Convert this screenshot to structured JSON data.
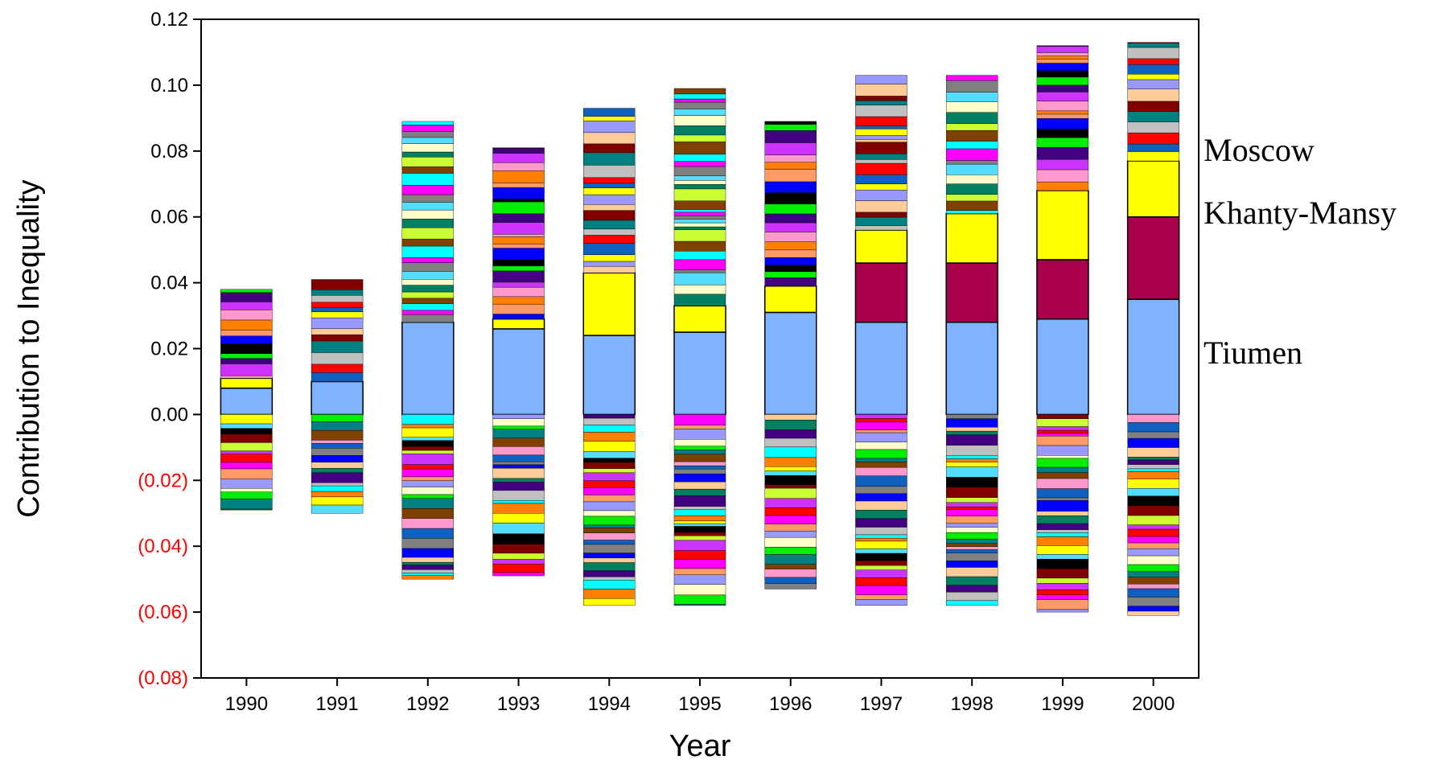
{
  "chart_data": {
    "type": "bar",
    "stacked": true,
    "title": "",
    "xlabel": "Year",
    "ylabel": "Contribution to Inequality",
    "ylim": [
      -0.08,
      0.12
    ],
    "yticks": [
      {
        "value": 0.12,
        "label": "0.12",
        "color": "#000000"
      },
      {
        "value": 0.1,
        "label": "0.10",
        "color": "#000000"
      },
      {
        "value": 0.08,
        "label": "0.08",
        "color": "#000000"
      },
      {
        "value": 0.06,
        "label": "0.06",
        "color": "#000000"
      },
      {
        "value": 0.04,
        "label": "0.04",
        "color": "#000000"
      },
      {
        "value": 0.02,
        "label": "0.02",
        "color": "#000000"
      },
      {
        "value": 0.0,
        "label": "0.00",
        "color": "#000000"
      },
      {
        "value": -0.02,
        "label": "(0.02)",
        "color": "#ff0000"
      },
      {
        "value": -0.04,
        "label": "(0.04)",
        "color": "#ff0000"
      },
      {
        "value": -0.06,
        "label": "(0.06)",
        "color": "#ff0000"
      },
      {
        "value": -0.08,
        "label": "(0.08)",
        "color": "#ff0000"
      }
    ],
    "categories": [
      "1990",
      "1991",
      "1992",
      "1993",
      "1994",
      "1995",
      "1996",
      "1997",
      "1998",
      "1999",
      "2000"
    ],
    "totals_positive": [
      0.038,
      0.041,
      0.089,
      0.081,
      0.093,
      0.099,
      0.089,
      0.103,
      0.103,
      0.112,
      0.113
    ],
    "totals_negative": [
      -0.029,
      -0.03,
      -0.05,
      -0.049,
      -0.058,
      -0.058,
      -0.053,
      -0.058,
      -0.058,
      -0.06,
      -0.061
    ],
    "series": [
      {
        "name": "Tiumen",
        "color": "#80b3ff",
        "values": [
          0.008,
          0.01,
          0.028,
          0.026,
          0.024,
          0.025,
          0.031,
          0.028,
          0.028,
          0.029,
          0.035
        ]
      },
      {
        "name": "Khanty-Mansy",
        "color": "#a8004a",
        "values": [
          0,
          0,
          0,
          0,
          0,
          0,
          0,
          0.018,
          0.018,
          0.018,
          0.025
        ]
      },
      {
        "name": "Moscow",
        "color": "#ffff00",
        "values": [
          0.003,
          0,
          0,
          0.003,
          0.019,
          0.008,
          0.008,
          0.01,
          0.015,
          0.021,
          0.017
        ]
      }
    ],
    "palette": [
      "#ff99cc",
      "#008060",
      "#ffff00",
      "#cc33ff",
      "#ffffcc",
      "#1060c0",
      "#400080",
      "#55ddff",
      "#ff0000",
      "#00ee00",
      "#808080",
      "#c0c0c0",
      "#000000",
      "#ff00ff",
      "#008080",
      "#0000ff",
      "#00ffff",
      "#800000",
      "#ff9966",
      "#804000",
      "#ffcc99",
      "#ff8000",
      "#ccff33",
      "#9999ff"
    ],
    "labels": [
      {
        "text": "Moscow",
        "series": "Moscow"
      },
      {
        "text": "Khanty-Mansy",
        "series": "Khanty-Mansy"
      },
      {
        "text": "Tiumen",
        "series": "Tiumen"
      }
    ]
  }
}
